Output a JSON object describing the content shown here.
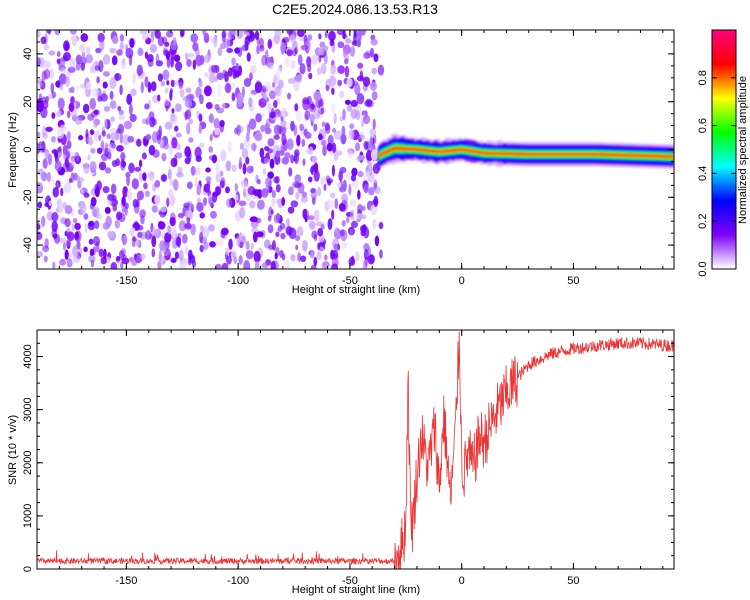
{
  "title": "C2E5.2024.086.13.53.R13",
  "chart_data": [
    {
      "type": "heatmap",
      "xlabel": "Height of straight line (km)",
      "ylabel": "Frequency (Hz)",
      "xlim": [
        -190,
        95
      ],
      "ylim": [
        -50,
        50
      ],
      "x_ticks": [
        -150,
        -100,
        -50,
        0,
        50
      ],
      "y_ticks": [
        -40,
        -20,
        0,
        20,
        40
      ],
      "noise_region": [
        -190,
        -36
      ],
      "signal_start_km": -37,
      "signal_ridge": [
        {
          "x": -36,
          "y": -2
        },
        {
          "x": -30,
          "y": 0.5
        },
        {
          "x": -20,
          "y": 0
        },
        {
          "x": -10,
          "y": -1
        },
        {
          "x": 0,
          "y": 0
        },
        {
          "x": 10,
          "y": -1.5
        },
        {
          "x": 30,
          "y": -2
        },
        {
          "x": 60,
          "y": -2
        },
        {
          "x": 95,
          "y": -3
        }
      ],
      "colorbar": {
        "label": "Normalized spectral amplitude",
        "range": [
          0,
          1
        ],
        "ticks": [
          0.0,
          0.2,
          0.4,
          0.6,
          0.8
        ],
        "tick_labels": [
          "0.0",
          "0.2",
          "0.4",
          "0.6",
          "0.8"
        ],
        "colors": [
          "#ffffff",
          "#8000ff",
          "#0000ff",
          "#00ffff",
          "#00ff00",
          "#ffff00",
          "#ff0000",
          "#ff0080"
        ]
      },
      "noise_color": "#7f00ff"
    },
    {
      "type": "line",
      "xlabel": "Height of straight line (km)",
      "ylabel": "SNR (10 * v/v)",
      "xlim": [
        -190,
        95
      ],
      "ylim": [
        0,
        4500
      ],
      "x_ticks": [
        -150,
        -100,
        -50,
        0,
        50
      ],
      "y_ticks": [
        0,
        1000,
        2000,
        3000,
        4000
      ],
      "line_color": "#ee3333",
      "series": [
        {
          "x": [
            -190,
            -50,
            -30,
            -27,
            -25,
            -24,
            -23,
            -22,
            -20,
            -18,
            -15,
            -12,
            -10,
            -8,
            -5,
            -3,
            -1,
            0,
            1,
            3,
            5,
            8,
            10,
            15,
            20,
            25,
            30,
            40,
            50,
            60,
            70,
            80,
            95
          ],
          "values": [
            150,
            150,
            150,
            400,
            800,
            3700,
            1200,
            800,
            1800,
            2500,
            1900,
            2700,
            1500,
            2900,
            1300,
            2400,
            4450,
            2000,
            1800,
            2200,
            1900,
            2500,
            2400,
            2900,
            3300,
            3600,
            3850,
            4050,
            4150,
            4200,
            4250,
            4250,
            4200
          ]
        }
      ]
    }
  ]
}
